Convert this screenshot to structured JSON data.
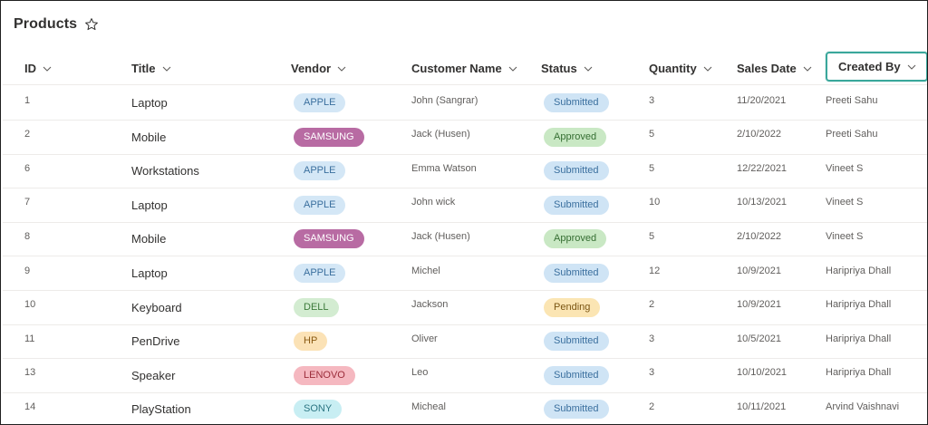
{
  "page": {
    "title": "Products"
  },
  "columns": [
    {
      "key": "id",
      "label": "ID"
    },
    {
      "key": "title",
      "label": "Title"
    },
    {
      "key": "vendor",
      "label": "Vendor"
    },
    {
      "key": "customer",
      "label": "Customer Name"
    },
    {
      "key": "status",
      "label": "Status"
    },
    {
      "key": "quantity",
      "label": "Quantity"
    },
    {
      "key": "sales_date",
      "label": "Sales Date"
    },
    {
      "key": "created_by",
      "label": "Created By"
    }
  ],
  "vendor_colors": {
    "APPLE": {
      "bg": "#d4e7f6",
      "fg": "#3a6f9e"
    },
    "SAMSUNG": {
      "bg": "#b86ba3",
      "fg": "#ffffff"
    },
    "DELL": {
      "bg": "#d3ecd1",
      "fg": "#3c7a3a"
    },
    "HP": {
      "bg": "#fbe2b6",
      "fg": "#8a5a12"
    },
    "LENOVO": {
      "bg": "#f5b8c0",
      "fg": "#9b2c3a"
    },
    "SONY": {
      "bg": "#c8eef3",
      "fg": "#2d7683"
    }
  },
  "status_colors": {
    "Submitted": {
      "bg": "#cfe4f5",
      "fg": "#3a6f9e"
    },
    "Approved": {
      "bg": "#c9e8c4",
      "fg": "#356e32"
    },
    "Pending": {
      "bg": "#fbe5b3",
      "fg": "#7a5512"
    }
  },
  "rows": [
    {
      "id": "1",
      "title": "Laptop",
      "vendor": "APPLE",
      "customer": "John (Sangrar)",
      "status": "Submitted",
      "quantity": "3",
      "sales_date": "11/20/2021",
      "created_by": "Preeti Sahu"
    },
    {
      "id": "2",
      "title": "Mobile",
      "vendor": "SAMSUNG",
      "customer": "Jack (Husen)",
      "status": "Approved",
      "quantity": "5",
      "sales_date": "2/10/2022",
      "created_by": "Preeti Sahu"
    },
    {
      "id": "6",
      "title": "Workstations",
      "vendor": "APPLE",
      "customer": "Emma Watson",
      "status": "Submitted",
      "quantity": "5",
      "sales_date": "12/22/2021",
      "created_by": "Vineet S"
    },
    {
      "id": "7",
      "title": "Laptop",
      "vendor": "APPLE",
      "customer": "John wick",
      "status": "Submitted",
      "quantity": "10",
      "sales_date": "10/13/2021",
      "created_by": "Vineet S"
    },
    {
      "id": "8",
      "title": "Mobile",
      "vendor": "SAMSUNG",
      "customer": "Jack (Husen)",
      "status": "Approved",
      "quantity": "5",
      "sales_date": "2/10/2022",
      "created_by": "Vineet S"
    },
    {
      "id": "9",
      "title": "Laptop",
      "vendor": "APPLE",
      "customer": "Michel",
      "status": "Submitted",
      "quantity": "12",
      "sales_date": "10/9/2021",
      "created_by": "Haripriya Dhall"
    },
    {
      "id": "10",
      "title": "Keyboard",
      "vendor": "DELL",
      "customer": "Jackson",
      "status": "Pending",
      "quantity": "2",
      "sales_date": "10/9/2021",
      "created_by": "Haripriya Dhall"
    },
    {
      "id": "11",
      "title": "PenDrive",
      "vendor": "HP",
      "customer": "Oliver",
      "status": "Submitted",
      "quantity": "3",
      "sales_date": "10/5/2021",
      "created_by": "Haripriya Dhall"
    },
    {
      "id": "13",
      "title": "Speaker",
      "vendor": "LENOVO",
      "customer": "Leo",
      "status": "Submitted",
      "quantity": "3",
      "sales_date": "10/10/2021",
      "created_by": "Haripriya Dhall"
    },
    {
      "id": "14",
      "title": "PlayStation",
      "vendor": "SONY",
      "customer": "Micheal",
      "status": "Submitted",
      "quantity": "2",
      "sales_date": "10/11/2021",
      "created_by": "Arvind Vaishnavi"
    }
  ]
}
